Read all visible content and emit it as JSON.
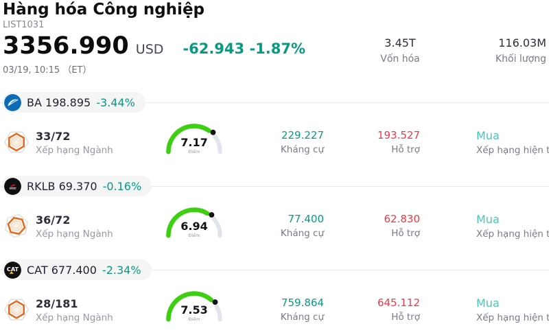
{
  "header": {
    "title": "Hàng hóa Công nghiệp",
    "list_id": "LIST1031",
    "price": "3356.990",
    "currency": "USD",
    "change": "-62.943 -1.87%",
    "datetime": "03/19, 10:15 （ET）",
    "stats": [
      {
        "value": "3.45T",
        "label": "Vốn hóa"
      },
      {
        "value": "116.03M",
        "label": "Khối lượng"
      }
    ]
  },
  "labels": {
    "industry_rank": "Xếp hạng Ngành",
    "score": "Điểm",
    "resistance": "Kháng cự",
    "support": "Hỗ trợ",
    "current_rating": "Xếp hạng hiện tại"
  },
  "colors": {
    "negative_teal": "#089981",
    "support_red": "#f23645",
    "rating_teal": "#42c9b6",
    "gauge_green": "#3ecf13",
    "gauge_track": "#e2e4eb"
  },
  "rows": [
    {
      "symbol": "BA",
      "price": "198.895",
      "change": "-3.44%",
      "logo_icon": "boeing-logo",
      "rank": "33/72",
      "score": "7.17",
      "resistance": "229.227",
      "support": "193.527",
      "rating": "Mua"
    },
    {
      "symbol": "RKLB",
      "price": "69.370",
      "change": "-0.16%",
      "logo_icon": "rocketlab-logo",
      "rank": "36/72",
      "score": "6.94",
      "resistance": "77.400",
      "support": "62.830",
      "rating": "Mua"
    },
    {
      "symbol": "CAT",
      "price": "677.400",
      "change": "-2.34%",
      "logo_icon": "caterpillar-logo",
      "rank": "28/181",
      "score": "7.53",
      "resistance": "759.864",
      "support": "645.112",
      "rating": "Mua"
    }
  ]
}
